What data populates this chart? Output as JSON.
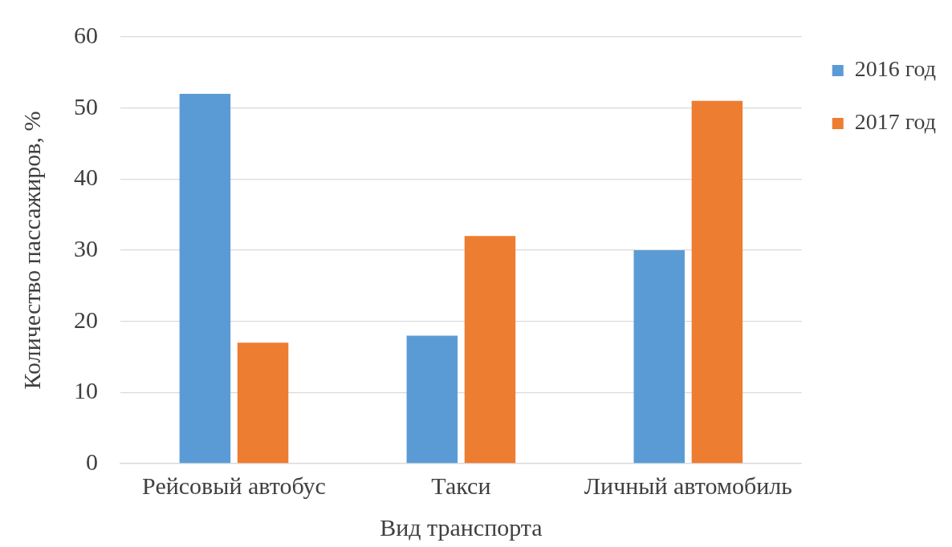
{
  "chart_data": {
    "type": "bar",
    "xlabel": "Вид транспорта",
    "ylabel": "Количество пассажиров, %",
    "categories": [
      "Рейсовый автобус",
      "Такси",
      "Личный автомобиль"
    ],
    "series": [
      {
        "name": "2016 год",
        "color": "#5b9bd5",
        "values": [
          52,
          18,
          30
        ]
      },
      {
        "name": "2017 год",
        "color": "#ed7d31",
        "values": [
          17,
          32,
          51
        ]
      }
    ],
    "ylim": [
      0,
      60
    ],
    "yticks": [
      0,
      10,
      20,
      30,
      40,
      50,
      60
    ],
    "grid": "y",
    "legend": "top right"
  }
}
